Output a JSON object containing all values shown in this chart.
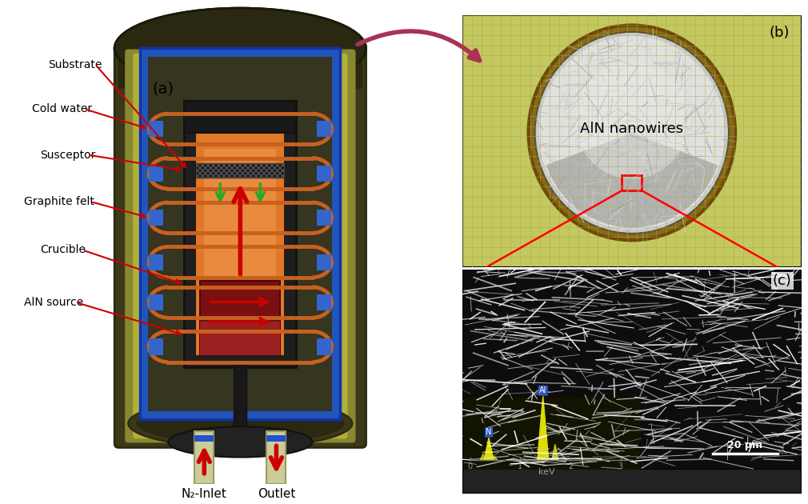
{
  "panel_a_label": "(a)",
  "panel_b_label": "(b)",
  "panel_c_label": "(c)",
  "aln_nanowires_text": "AlN nanowires",
  "labels": [
    "Substrate",
    "Cold water",
    "Susceptor",
    "Graphite felt",
    "Crucible",
    "AlN source"
  ],
  "n2_inlet": "N₂-Inlet",
  "outlet": "Outlet",
  "keV_label": "keV",
  "scale_bar_text": "20 μm",
  "bg_color": "#ffffff",
  "vessel_dark": "#3a3a18",
  "vessel_mid": "#787830",
  "vessel_light": "#b8b840",
  "blue_frame": "#2255cc",
  "graphite": "#1e1e1e",
  "orange_hot": "#e07828",
  "orange_light": "#f09850",
  "dark_red": "#7a1010",
  "mid_red": "#9a2020",
  "red_arrow": "#cc0000",
  "green_arrow": "#22aa22",
  "coil_color": "#c86020",
  "blue_rect": "#3366cc",
  "pink_arrow": "#aa3355",
  "grid_bg": "#c8c860",
  "grid_line": "#a8a840",
  "bronze_rim": "#8B6914",
  "inner_substrate": "#d8d8d8",
  "sem_bg": "#111111",
  "eds_yellow": "#dddd00",
  "eds_bg": "#1a1800"
}
